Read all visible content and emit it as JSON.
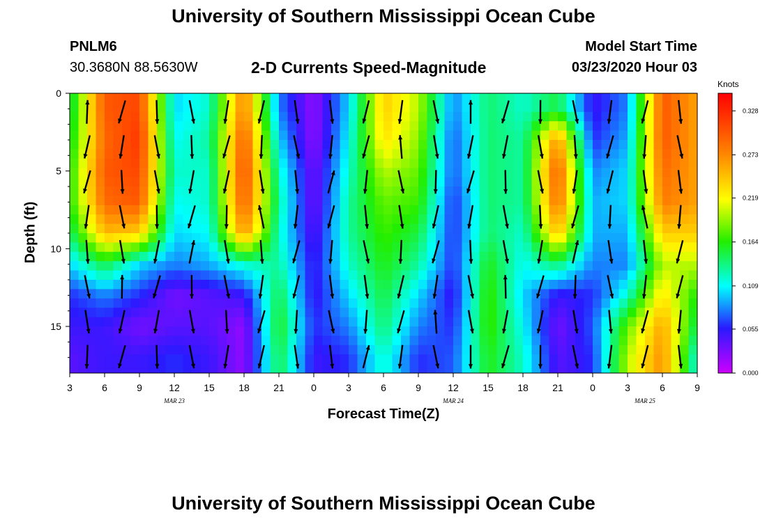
{
  "header": {
    "title": "University of Southern Mississippi Ocean Cube",
    "station": "PNLM6",
    "coordinates": "30.3680N 88.5630W",
    "subtitle": "2-D Currents Speed-Magnitude",
    "model_start_label": "Model Start Time",
    "model_start_value": "03/23/2020 Hour 03"
  },
  "footer": {
    "title": "University of Southern Mississippi Ocean Cube"
  },
  "colorbar": {
    "units": "Knots",
    "tick_labels": [
      "0.328",
      "0.273",
      "0.219",
      "0.164",
      "0.109",
      "0.055",
      "0.000"
    ]
  },
  "chart_data": {
    "type": "heatmap",
    "title": "2-D Currents Speed-Magnitude",
    "xlabel": "Forecast Time(Z)",
    "ylabel": "Depth (ft)",
    "x_range_hours": [
      0,
      54
    ],
    "y_range_ft": [
      0,
      18
    ],
    "y_inverted": true,
    "x_tick_labels": [
      "3",
      "6",
      "9",
      "12",
      "15",
      "18",
      "21",
      "0",
      "3",
      "6",
      "9",
      "12",
      "15",
      "18",
      "21",
      "0",
      "3",
      "6",
      "9"
    ],
    "x_tick_hours": [
      0,
      3,
      6,
      9,
      12,
      15,
      18,
      21,
      24,
      27,
      30,
      33,
      36,
      39,
      42,
      45,
      48,
      51,
      54
    ],
    "y_ticks": [
      0,
      5,
      10,
      15
    ],
    "date_labels": [
      {
        "text": "MAR 23",
        "hour": 9
      },
      {
        "text": "MAR 24",
        "hour": 33
      },
      {
        "text": "MAR 25",
        "hour": 49.5
      }
    ],
    "speed_range_knots": [
      0.0,
      0.35
    ],
    "speed_colorbar_ticks": [
      0.328,
      0.273,
      0.219,
      0.164,
      0.109,
      0.055,
      0.0
    ],
    "hours": [
      0,
      3,
      6,
      9,
      12,
      15,
      18,
      21,
      24,
      27,
      30,
      33,
      36,
      39,
      42,
      45,
      48,
      51,
      54
    ],
    "depth_profile_ft": [
      1,
      3,
      5,
      7,
      9,
      11,
      13,
      15,
      17
    ],
    "speed_knots_by_depth": [
      [
        0.14,
        0.3,
        0.31,
        0.1,
        0.12,
        0.28,
        0.08,
        0.02,
        0.1,
        0.24,
        0.2,
        0.08,
        0.14,
        0.12,
        0.15,
        0.05,
        0.08,
        0.3,
        0.26
      ],
      [
        0.15,
        0.29,
        0.32,
        0.11,
        0.13,
        0.3,
        0.1,
        0.02,
        0.11,
        0.23,
        0.19,
        0.07,
        0.14,
        0.13,
        0.27,
        0.06,
        0.09,
        0.3,
        0.26
      ],
      [
        0.16,
        0.3,
        0.31,
        0.12,
        0.12,
        0.31,
        0.12,
        0.03,
        0.12,
        0.2,
        0.18,
        0.07,
        0.14,
        0.13,
        0.3,
        0.08,
        0.1,
        0.29,
        0.26
      ],
      [
        0.16,
        0.29,
        0.3,
        0.11,
        0.12,
        0.3,
        0.13,
        0.03,
        0.13,
        0.18,
        0.17,
        0.06,
        0.14,
        0.13,
        0.29,
        0.09,
        0.1,
        0.28,
        0.26
      ],
      [
        0.14,
        0.25,
        0.24,
        0.1,
        0.11,
        0.27,
        0.12,
        0.04,
        0.13,
        0.17,
        0.15,
        0.06,
        0.14,
        0.12,
        0.25,
        0.09,
        0.09,
        0.24,
        0.24
      ],
      [
        0.1,
        0.15,
        0.1,
        0.08,
        0.09,
        0.12,
        0.13,
        0.05,
        0.12,
        0.16,
        0.13,
        0.06,
        0.16,
        0.11,
        0.14,
        0.08,
        0.08,
        0.2,
        0.2
      ],
      [
        0.06,
        0.08,
        0.06,
        0.03,
        0.04,
        0.05,
        0.15,
        0.05,
        0.1,
        0.15,
        0.1,
        0.05,
        0.17,
        0.1,
        0.05,
        0.06,
        0.12,
        0.23,
        0.16
      ],
      [
        0.05,
        0.05,
        0.03,
        0.04,
        0.04,
        0.02,
        0.16,
        0.06,
        0.08,
        0.14,
        0.08,
        0.06,
        0.17,
        0.11,
        0.03,
        0.07,
        0.18,
        0.26,
        0.14
      ],
      [
        0.04,
        0.05,
        0.05,
        0.06,
        0.05,
        0.02,
        0.15,
        0.05,
        0.06,
        0.12,
        0.06,
        0.07,
        0.16,
        0.12,
        0.04,
        0.06,
        0.2,
        0.27,
        0.11
      ]
    ]
  }
}
